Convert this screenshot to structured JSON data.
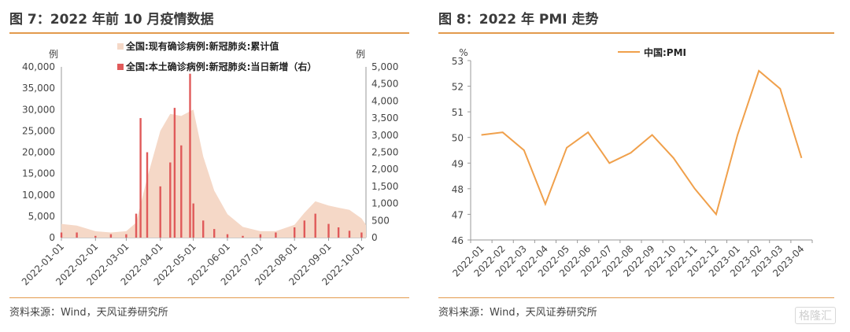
{
  "figure1": {
    "title": "图 7：2022 年前 10 月疫情数据",
    "source": "资料来源：Wind，天风证券研究所"
  },
  "figure2": {
    "title": "图 8：2022 年 PMI 走势",
    "source": "资料来源：Wind，天风证券研究所"
  },
  "watermark": "格隆汇",
  "colors": {
    "accent": "#e39a4d",
    "area": "#f5d8c7",
    "bars": "#e05a5a",
    "line": "#f0a04b"
  },
  "chart_data": [
    {
      "type": "area",
      "title": "",
      "x_ticks": [
        "2022-01-01",
        "2022-02-01",
        "2022-03-01",
        "2022-04-01",
        "2022-05-01",
        "2022-06-01",
        "2022-07-01",
        "2022-08-01",
        "2022-09-01",
        "2022-10-01"
      ],
      "left_axis": {
        "unit": "例",
        "ylim": [
          0,
          40000
        ],
        "ticks": [
          "0",
          "5,000",
          "10,000",
          "15,000",
          "20,000",
          "25,000",
          "30,000",
          "35,000",
          "40,000"
        ]
      },
      "right_axis": {
        "unit": "例",
        "ylim": [
          0,
          5000
        ],
        "ticks": [
          "0",
          "500",
          "1,000",
          "1,500",
          "2,000",
          "2,500",
          "3,000",
          "3,500",
          "4,000",
          "4,500",
          "5,000"
        ]
      },
      "series": [
        {
          "name": "全国:现有确诊病例:新冠肺炎:累计值",
          "type": "area",
          "axis": "left",
          "x": [
            "2022-01-01",
            "2022-01-15",
            "2022-02-01",
            "2022-02-15",
            "2022-03-01",
            "2022-03-10",
            "2022-03-20",
            "2022-04-01",
            "2022-04-10",
            "2022-04-20",
            "2022-05-01",
            "2022-05-10",
            "2022-05-20",
            "2022-06-01",
            "2022-06-15",
            "2022-07-01",
            "2022-07-15",
            "2022-08-01",
            "2022-08-10",
            "2022-08-20",
            "2022-09-01",
            "2022-09-10",
            "2022-09-20",
            "2022-10-01",
            "2022-10-05"
          ],
          "values": [
            3200,
            2800,
            1500,
            1200,
            1500,
            3500,
            14000,
            25000,
            29000,
            28500,
            30000,
            19000,
            11000,
            5500,
            2500,
            1500,
            1500,
            3000,
            5800,
            8500,
            7500,
            7000,
            6500,
            4500,
            3000
          ]
        },
        {
          "name": "全国:本土确诊病例:新冠肺炎:当日新增（右）",
          "type": "bar",
          "axis": "right",
          "x": [
            "2022-01-01",
            "2022-01-15",
            "2022-02-01",
            "2022-02-15",
            "2022-03-01",
            "2022-03-10",
            "2022-03-14",
            "2022-03-20",
            "2022-04-01",
            "2022-04-10",
            "2022-04-14",
            "2022-04-20",
            "2022-04-28",
            "2022-05-01",
            "2022-05-10",
            "2022-05-20",
            "2022-06-01",
            "2022-06-15",
            "2022-07-01",
            "2022-07-15",
            "2022-08-01",
            "2022-08-10",
            "2022-08-20",
            "2022-09-01",
            "2022-09-10",
            "2022-09-20",
            "2022-10-01"
          ],
          "values": [
            150,
            150,
            50,
            100,
            100,
            700,
            3500,
            2500,
            1500,
            2200,
            3800,
            2700,
            4800,
            1000,
            500,
            250,
            100,
            50,
            100,
            150,
            300,
            500,
            700,
            400,
            300,
            200,
            150
          ]
        }
      ]
    },
    {
      "type": "line",
      "title": "",
      "ylabel": "%",
      "ylim": [
        46,
        53
      ],
      "yticks": [
        46,
        47,
        48,
        49,
        50,
        51,
        52,
        53
      ],
      "x": [
        "2022-01",
        "2022-02",
        "2022-03",
        "2022-04",
        "2022-05",
        "2022-06",
        "2022-07",
        "2022-08",
        "2022-09",
        "2022-10",
        "2022-11",
        "2022-12",
        "2023-01",
        "2023-02",
        "2023-03",
        "2023-04"
      ],
      "series": [
        {
          "name": "中国:PMI",
          "values": [
            50.1,
            50.2,
            49.5,
            47.4,
            49.6,
            50.2,
            49.0,
            49.4,
            50.1,
            49.2,
            48.0,
            47.0,
            50.1,
            52.6,
            51.9,
            49.2
          ]
        }
      ]
    }
  ]
}
